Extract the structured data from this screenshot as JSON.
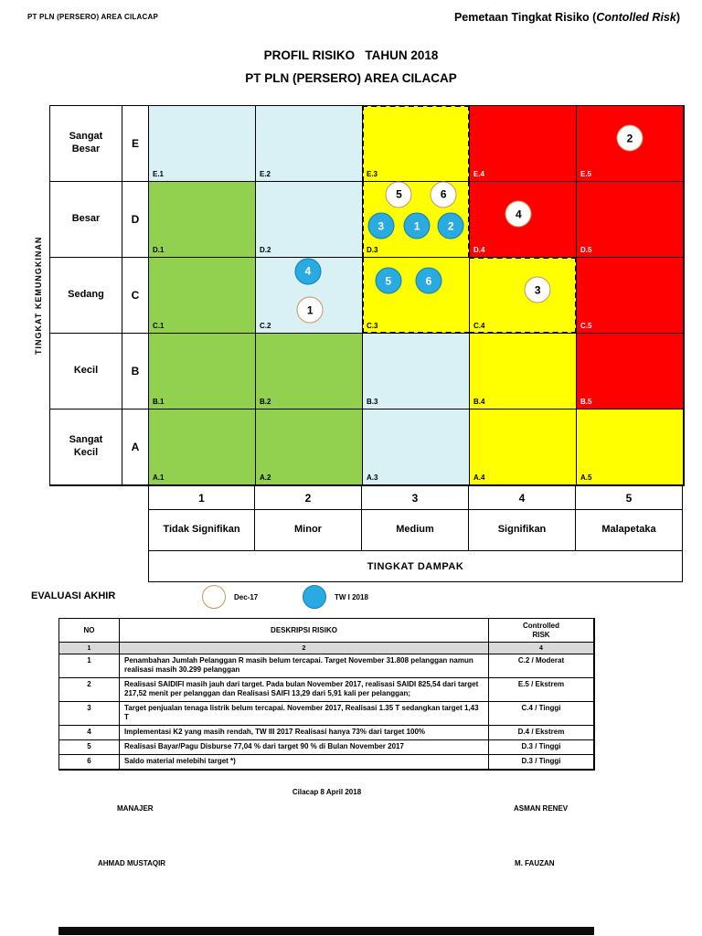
{
  "header": {
    "left": "PT PLN (PERSERO) AREA CILACAP",
    "right_prefix": "Pemetaan Tingkat Risiko (",
    "right_italic": "Contolled Risk",
    "right_suffix": ")"
  },
  "title": {
    "line1": "PROFIL RISIKO   TAHUN 2018",
    "line2": "PT PLN (PERSERO) AREA CILACAP"
  },
  "colors": {
    "green": "#92D050",
    "blue": "#D9F0F5",
    "yellow": "#FFFF00",
    "red": "#FF0000",
    "marker_blue": "#29ABE2",
    "marker_white_border": "#C9955E"
  },
  "matrix": {
    "y_axis_label": "TINGKAT KEMUNGKINAN",
    "x_axis_label": "TINGKAT DAMPAK",
    "rows": [
      {
        "name": "Sangat Besar",
        "letter": "E",
        "cells": [
          {
            "label": "E.1",
            "color": "blue"
          },
          {
            "label": "E.2",
            "color": "blue"
          },
          {
            "label": "E.3",
            "color": "yellow",
            "dashed": [
              "top",
              "left",
              "right"
            ]
          },
          {
            "label": "E.4",
            "color": "red"
          },
          {
            "label": "E.5",
            "color": "red"
          }
        ]
      },
      {
        "name": "Besar",
        "letter": "D",
        "cells": [
          {
            "label": "D.1",
            "color": "green"
          },
          {
            "label": "D.2",
            "color": "blue"
          },
          {
            "label": "D.3",
            "color": "yellow",
            "dashed": [
              "left",
              "right"
            ]
          },
          {
            "label": "D.4",
            "color": "red"
          },
          {
            "label": "D.5",
            "color": "red"
          }
        ]
      },
      {
        "name": "Sedang",
        "letter": "C",
        "cells": [
          {
            "label": "C.1",
            "color": "green"
          },
          {
            "label": "C.2",
            "color": "blue"
          },
          {
            "label": "C.3",
            "color": "yellow",
            "dashed": [
              "left",
              "bottom"
            ]
          },
          {
            "label": "C.4",
            "color": "yellow",
            "dashed": [
              "top",
              "right",
              "bottom"
            ]
          },
          {
            "label": "C.5",
            "color": "red"
          }
        ]
      },
      {
        "name": "Kecil",
        "letter": "B",
        "cells": [
          {
            "label": "B.1",
            "color": "green"
          },
          {
            "label": "B.2",
            "color": "green"
          },
          {
            "label": "B.3",
            "color": "blue"
          },
          {
            "label": "B.4",
            "color": "yellow"
          },
          {
            "label": "B.5",
            "color": "red"
          }
        ]
      },
      {
        "name": "Sangat Kecil",
        "letter": "A",
        "cells": [
          {
            "label": "A.1",
            "color": "green"
          },
          {
            "label": "A.2",
            "color": "green"
          },
          {
            "label": "A.3",
            "color": "blue"
          },
          {
            "label": "A.4",
            "color": "yellow"
          },
          {
            "label": "A.5",
            "color": "yellow"
          }
        ]
      }
    ],
    "impact_numbers": [
      "1",
      "2",
      "3",
      "4",
      "5"
    ],
    "impact_labels": [
      "Tidak Signifikan",
      "Minor",
      "Medium",
      "Signifikan",
      "Malapetaka"
    ]
  },
  "markers": [
    {
      "num": "2",
      "type": "dec17",
      "cell": "E.5",
      "x": 50,
      "y": 43
    },
    {
      "num": "5",
      "type": "dec17",
      "cell": "D.3",
      "x": 34,
      "y": 17
    },
    {
      "num": "6",
      "type": "dec17",
      "cell": "D.3",
      "x": 76,
      "y": 17
    },
    {
      "num": "3",
      "type": "tw2018",
      "cell": "D.3",
      "x": 17,
      "y": 59
    },
    {
      "num": "1",
      "type": "tw2018",
      "cell": "D.3",
      "x": 51,
      "y": 59
    },
    {
      "num": "2",
      "type": "tw2018",
      "cell": "D.3",
      "x": 83,
      "y": 59
    },
    {
      "num": "4",
      "type": "dec17",
      "cell": "D.4",
      "x": 46,
      "y": 43
    },
    {
      "num": "4",
      "type": "tw2018",
      "cell": "C.2",
      "x": 49,
      "y": 18
    },
    {
      "num": "1",
      "type": "dec17",
      "cell": "C.2",
      "x": 51,
      "y": 70
    },
    {
      "num": "5",
      "type": "tw2018",
      "cell": "C.3",
      "x": 24,
      "y": 31
    },
    {
      "num": "6",
      "type": "tw2018",
      "cell": "C.3",
      "x": 62,
      "y": 31
    },
    {
      "num": "3",
      "type": "dec17",
      "cell": "C.4",
      "x": 64,
      "y": 43
    }
  ],
  "legend": {
    "title": "EVALUASI AKHIR",
    "dec_label": "Dec-17",
    "tw_label": "TW I 2018"
  },
  "table": {
    "headers": {
      "no": "NO",
      "desc": "DESKRIPSI RISIKO",
      "risk_line1": "Controlled",
      "risk_line2": "RISK"
    },
    "col_numbers": [
      "1",
      "2",
      "4"
    ],
    "rows": [
      {
        "no": "1",
        "desc": "Penambahan Jumlah Pelanggan R masih belum tercapai. Target November 31.808  pelanggan namun realisasi masih 30.299 pelanggan",
        "risk": "C.2 / Moderat"
      },
      {
        "no": "2",
        "desc": "Realisasi SAIDIFI masih jauh dari target. Pada bulan November 2017, realisasi SAIDI 825,54 dari target 217,52 menit per pelanggan dan Realisasi SAIFI 13,29 dari 5,91 kali per pelanggan;",
        "risk": "E.5 / Ekstrem"
      },
      {
        "no": "3",
        "desc": "Target penjualan tenaga listrik belum tercapai. November 2017, Realisasi 1.35 T sedangkan target 1,43 T",
        "risk": "C.4 / Tinggi"
      },
      {
        "no": "4",
        "desc": "Implementasi K2 yang masih rendah, TW III 2017 Realisasi hanya 73% dari target 100%",
        "risk": "D.4 / Ekstrem"
      },
      {
        "no": "5",
        "desc": "Realisasi Bayar/Pagu Disburse 77,04 % dari target 90 % di Bulan November 2017",
        "risk": "D.3 / Tinggi"
      },
      {
        "no": "6",
        "desc": "Saldo material melebihi target *)",
        "risk": "D.3 / Tinggi"
      }
    ]
  },
  "signatures": {
    "date": "Cilacap 8 April 2018",
    "left_title": "MANAJER",
    "right_title": "ASMAN RENEV",
    "left_name": "AHMAD MUSTAQIR",
    "right_name": "M. FAUZAN"
  }
}
